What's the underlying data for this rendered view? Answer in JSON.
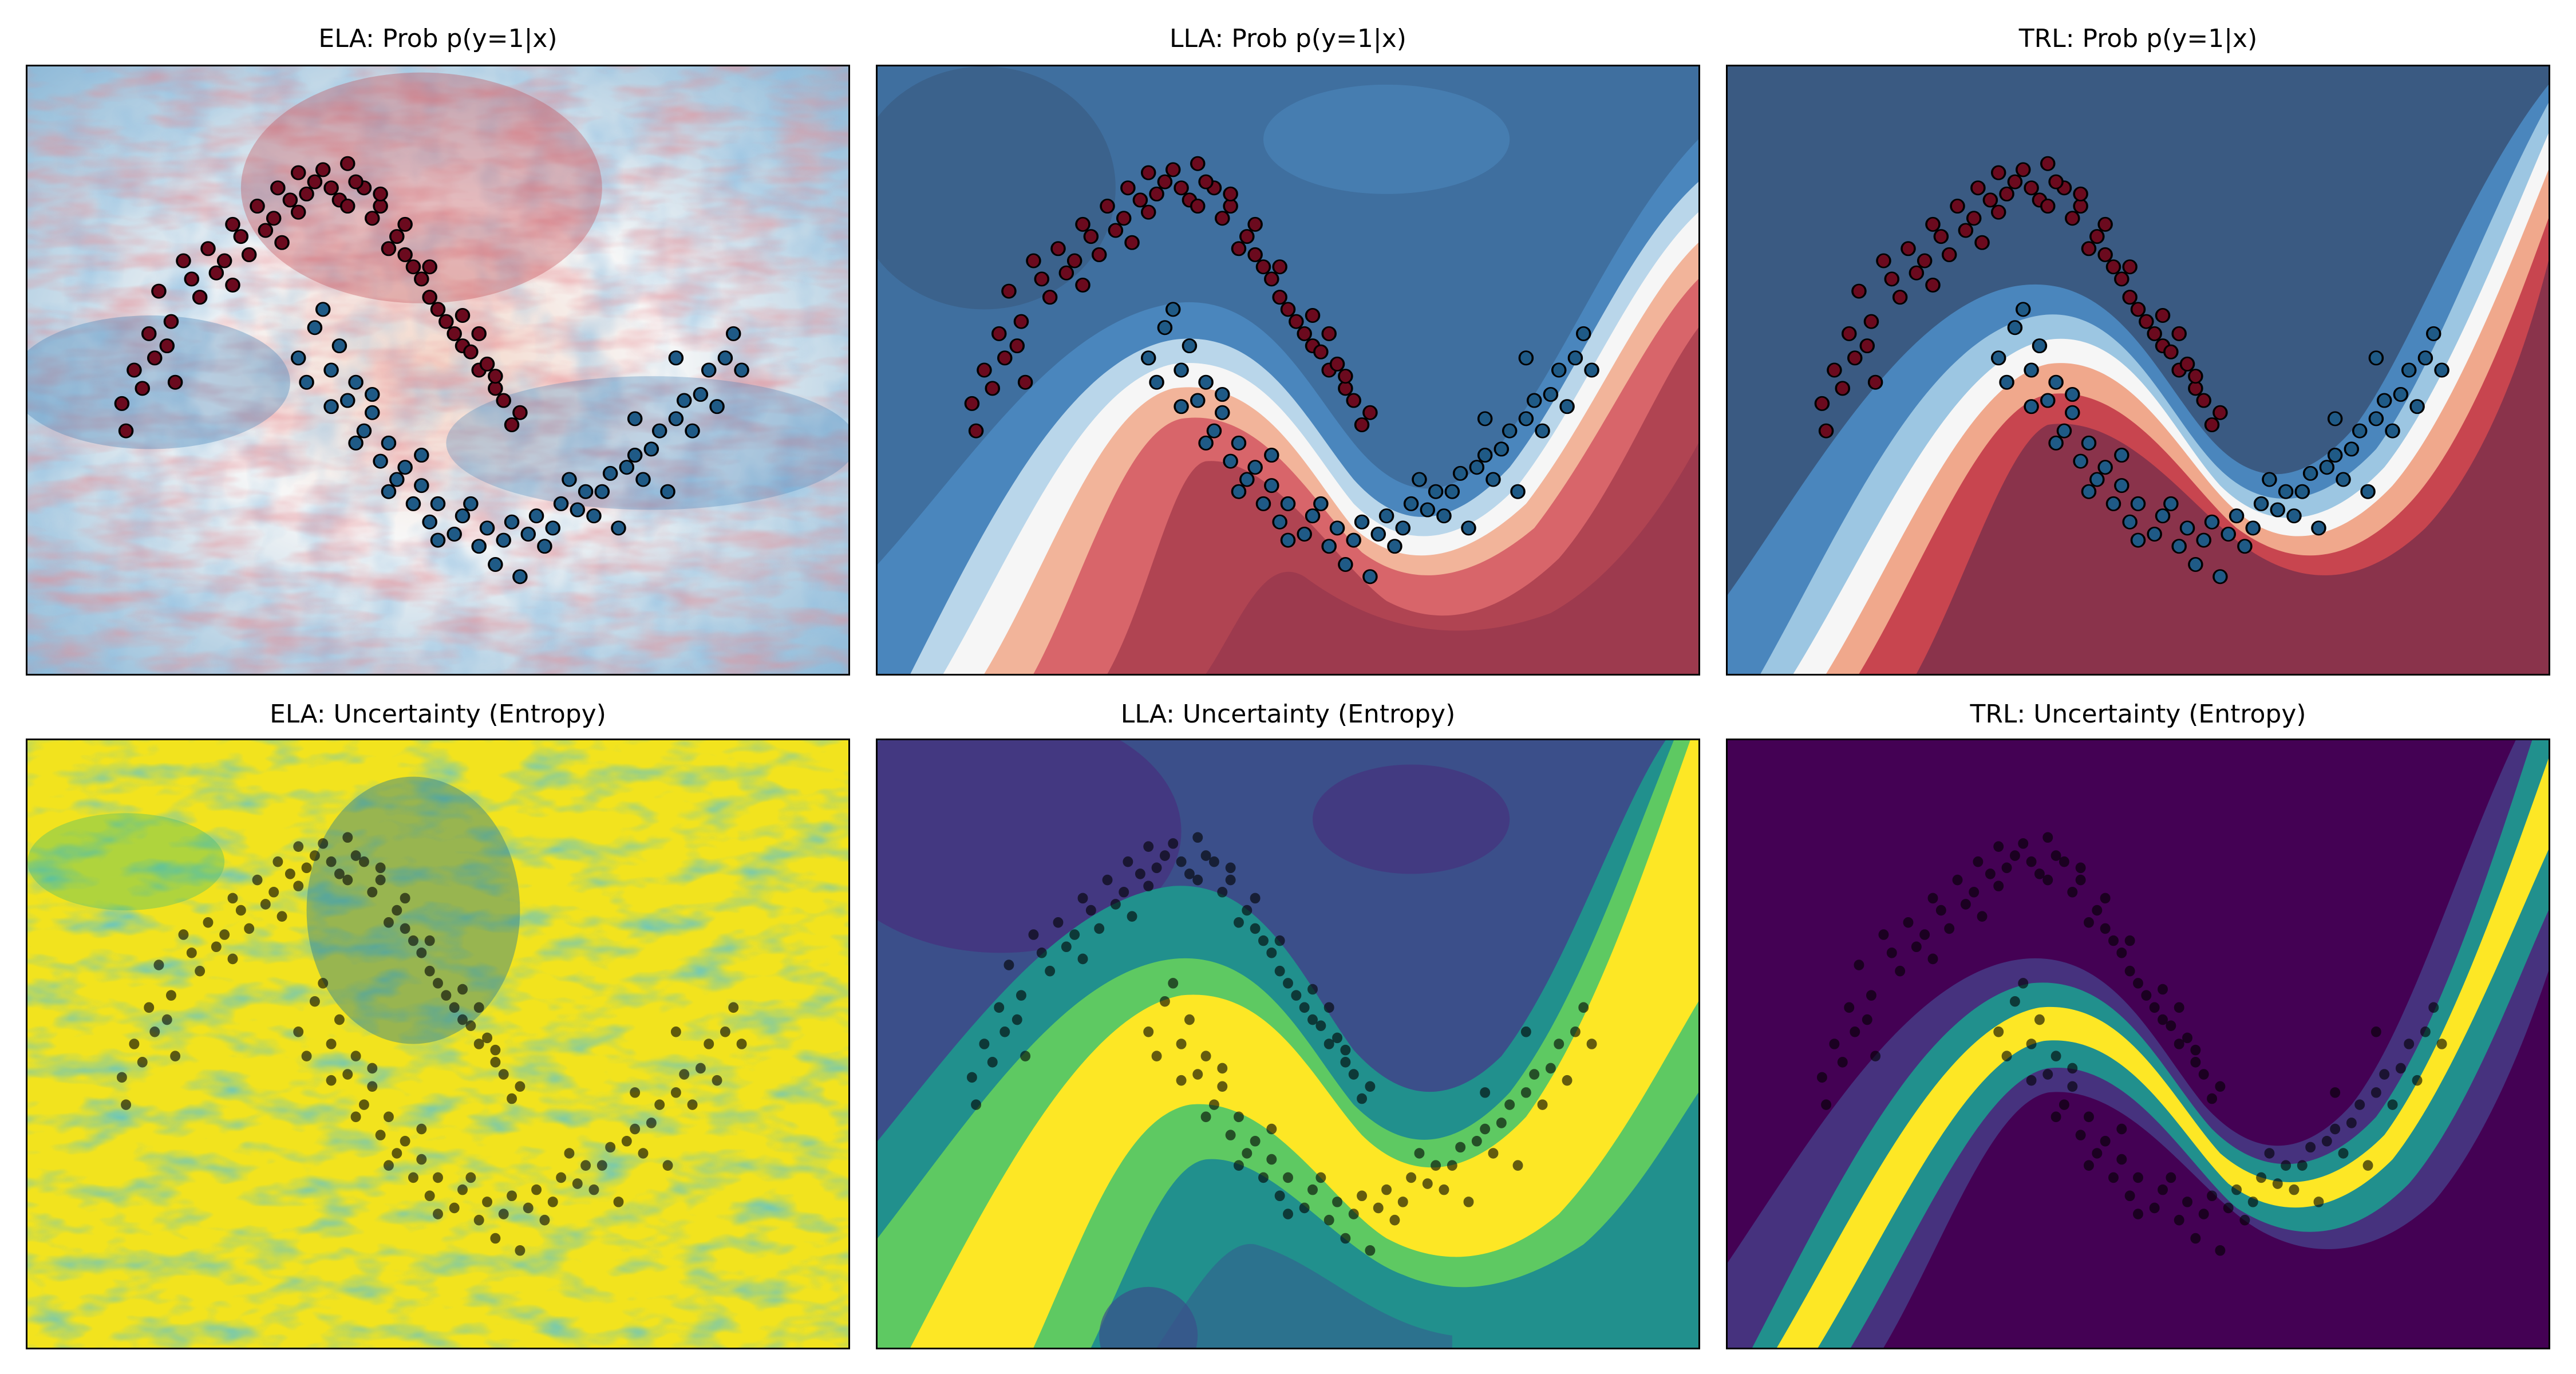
{
  "figure": {
    "titles": [
      "ELA: Prob p(y=1|x)",
      "LLA: Prob p(y=1|x)",
      "TRL: Prob p(y=1|x)",
      "ELA: Uncertainty (Entropy)",
      "LLA: Uncertainty (Entropy)",
      "TRL: Uncertainty (Entropy)"
    ]
  },
  "colors": {
    "class0_point": "#6b0a1e",
    "class1_point": "#1f5a86",
    "rdbu_dark_blue": "#3a5a82",
    "rdbu_blue": "#4a86bd",
    "rdbu_white": "#f6f6f6",
    "rdbu_red": "#c8454f",
    "rdbu_dark_red": "#8a334b",
    "viridis_purple": "#440154",
    "viridis_teal": "#21908d",
    "viridis_yellow": "#fde725"
  },
  "chart_data": [
    {
      "type": "heatmap",
      "title": "ELA: Prob p(y=1|x)",
      "colormap": "RdBu",
      "xlabel": "",
      "ylabel": "",
      "ticks": "none",
      "description": "Noisy, radially streaked probability field; no clean decision boundary. Two-moons scatter overlaid (red=class 0 upper moon, blue=class 1 lower moon).",
      "overlay": "two-moons scatter, ~400 points"
    },
    {
      "type": "heatmap",
      "title": "LLA: Prob p(y=1|x)",
      "colormap": "RdBu",
      "xlabel": "",
      "ylabel": "",
      "ticks": "none",
      "description": "Smooth S-shaped decision boundary separating moons; blue upper-left, red lower-right, white band along boundary.",
      "overlay": "two-moons scatter, ~400 points"
    },
    {
      "type": "heatmap",
      "title": "TRL: Prob p(y=1|x)",
      "colormap": "RdBu",
      "xlabel": "",
      "ylabel": "",
      "ticks": "none",
      "description": "Sharp S-shaped decision boundary; saturated dark blue upper-left, dark red lower-right, narrow white band.",
      "overlay": "two-moons scatter, ~400 points"
    },
    {
      "type": "heatmap",
      "title": "ELA: Uncertainty (Entropy)",
      "colormap": "viridis",
      "xlabel": "",
      "ylabel": "",
      "ticks": "none",
      "description": "Mostly high entropy (yellow) with noisy teal/blue patches.",
      "overlay": "black scatter points (semi-transparent)"
    },
    {
      "type": "heatmap",
      "title": "LLA: Uncertainty (Entropy)",
      "colormap": "viridis",
      "xlabel": "",
      "ylabel": "",
      "ticks": "none",
      "description": "Broad yellow S-shaped high-entropy band along the boundary, teal/purple elsewhere.",
      "overlay": "black scatter points (semi-transparent)"
    },
    {
      "type": "heatmap",
      "title": "TRL: Uncertainty (Entropy)",
      "colormap": "viridis",
      "xlabel": "",
      "ylabel": "",
      "ticks": "none",
      "description": "Narrow yellow S-shaped band along the boundary, dark purple (low entropy) elsewhere.",
      "overlay": "black scatter points (semi-transparent)"
    }
  ],
  "points": {
    "upper_moon": [
      [
        0.115,
        0.555
      ],
      [
        0.148,
        0.44
      ],
      [
        0.16,
        0.37
      ],
      [
        0.19,
        0.32
      ],
      [
        0.22,
        0.3
      ],
      [
        0.25,
        0.26
      ],
      [
        0.28,
        0.23
      ],
      [
        0.305,
        0.2
      ],
      [
        0.33,
        0.175
      ],
      [
        0.36,
        0.17
      ],
      [
        0.39,
        0.16
      ],
      [
        0.41,
        0.2
      ],
      [
        0.43,
        0.23
      ],
      [
        0.45,
        0.28
      ],
      [
        0.47,
        0.33
      ],
      [
        0.49,
        0.38
      ],
      [
        0.51,
        0.42
      ],
      [
        0.53,
        0.46
      ],
      [
        0.55,
        0.5
      ],
      [
        0.57,
        0.53
      ],
      [
        0.6,
        0.57
      ],
      [
        0.13,
        0.5
      ],
      [
        0.155,
        0.48
      ],
      [
        0.175,
        0.42
      ],
      [
        0.2,
        0.35
      ],
      [
        0.23,
        0.34
      ],
      [
        0.26,
        0.28
      ],
      [
        0.27,
        0.31
      ],
      [
        0.3,
        0.25
      ],
      [
        0.32,
        0.22
      ],
      [
        0.34,
        0.21
      ],
      [
        0.37,
        0.2
      ],
      [
        0.4,
        0.19
      ],
      [
        0.42,
        0.25
      ],
      [
        0.44,
        0.3
      ],
      [
        0.46,
        0.31
      ],
      [
        0.48,
        0.35
      ],
      [
        0.5,
        0.4
      ],
      [
        0.52,
        0.44
      ],
      [
        0.54,
        0.47
      ],
      [
        0.56,
        0.49
      ],
      [
        0.58,
        0.55
      ],
      [
        0.14,
        0.53
      ],
      [
        0.17,
        0.46
      ],
      [
        0.21,
        0.38
      ],
      [
        0.24,
        0.32
      ],
      [
        0.29,
        0.27
      ],
      [
        0.33,
        0.24
      ],
      [
        0.35,
        0.19
      ],
      [
        0.38,
        0.22
      ],
      [
        0.43,
        0.21
      ],
      [
        0.46,
        0.26
      ],
      [
        0.49,
        0.33
      ],
      [
        0.53,
        0.41
      ],
      [
        0.55,
        0.44
      ],
      [
        0.57,
        0.51
      ],
      [
        0.59,
        0.59
      ],
      [
        0.12,
        0.6
      ],
      [
        0.18,
        0.52
      ],
      [
        0.25,
        0.36
      ],
      [
        0.31,
        0.29
      ],
      [
        0.39,
        0.23
      ]
    ],
    "lower_moon": [
      [
        0.33,
        0.48
      ],
      [
        0.35,
        0.43
      ],
      [
        0.36,
        0.4
      ],
      [
        0.38,
        0.46
      ],
      [
        0.4,
        0.52
      ],
      [
        0.42,
        0.57
      ],
      [
        0.44,
        0.62
      ],
      [
        0.46,
        0.66
      ],
      [
        0.48,
        0.69
      ],
      [
        0.5,
        0.72
      ],
      [
        0.53,
        0.74
      ],
      [
        0.56,
        0.76
      ],
      [
        0.59,
        0.75
      ],
      [
        0.62,
        0.74
      ],
      [
        0.65,
        0.72
      ],
      [
        0.68,
        0.7
      ],
      [
        0.71,
        0.67
      ],
      [
        0.74,
        0.64
      ],
      [
        0.77,
        0.6
      ],
      [
        0.8,
        0.55
      ],
      [
        0.83,
        0.5
      ],
      [
        0.86,
        0.44
      ],
      [
        0.34,
        0.52
      ],
      [
        0.37,
        0.5
      ],
      [
        0.39,
        0.55
      ],
      [
        0.41,
        0.6
      ],
      [
        0.43,
        0.65
      ],
      [
        0.45,
        0.68
      ],
      [
        0.47,
        0.72
      ],
      [
        0.49,
        0.75
      ],
      [
        0.52,
        0.77
      ],
      [
        0.55,
        0.79
      ],
      [
        0.58,
        0.78
      ],
      [
        0.61,
        0.77
      ],
      [
        0.64,
        0.76
      ],
      [
        0.67,
        0.73
      ],
      [
        0.7,
        0.7
      ],
      [
        0.73,
        0.66
      ],
      [
        0.76,
        0.63
      ],
      [
        0.79,
        0.58
      ],
      [
        0.82,
        0.54
      ],
      [
        0.85,
        0.48
      ],
      [
        0.4,
        0.62
      ],
      [
        0.44,
        0.7
      ],
      [
        0.5,
        0.78
      ],
      [
        0.57,
        0.82
      ],
      [
        0.63,
        0.79
      ],
      [
        0.69,
        0.74
      ],
      [
        0.75,
        0.68
      ],
      [
        0.81,
        0.6
      ],
      [
        0.84,
        0.56
      ],
      [
        0.87,
        0.5
      ],
      [
        0.78,
        0.7
      ],
      [
        0.72,
        0.76
      ],
      [
        0.6,
        0.84
      ],
      [
        0.54,
        0.72
      ],
      [
        0.48,
        0.64
      ],
      [
        0.42,
        0.54
      ],
      [
        0.37,
        0.56
      ],
      [
        0.66,
        0.68
      ],
      [
        0.74,
        0.58
      ],
      [
        0.79,
        0.48
      ]
    ]
  }
}
